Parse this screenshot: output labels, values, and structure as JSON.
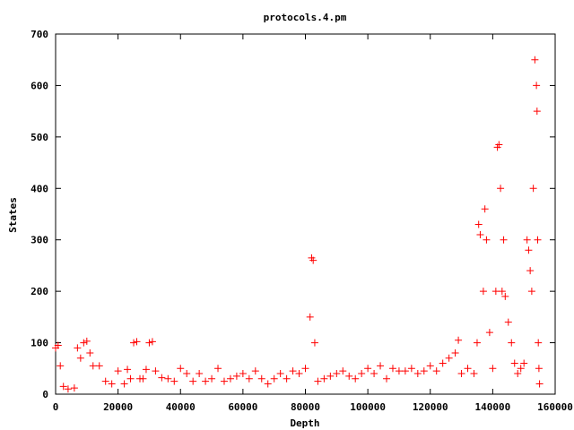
{
  "chart_data": {
    "type": "scatter",
    "title": "protocols.4.pm",
    "xlabel": "Depth",
    "ylabel": "States",
    "xlim": [
      0,
      160000
    ],
    "ylim": [
      0,
      700
    ],
    "xticks": [
      "0",
      "20000",
      "40000",
      "60000",
      "80000",
      "100000",
      "120000",
      "140000",
      "160000"
    ],
    "yticks": [
      "0",
      "100",
      "200",
      "300",
      "400",
      "500",
      "600",
      "700"
    ],
    "grid": false,
    "legend": "none",
    "marker": "plus",
    "color": "#ff0000",
    "series": [
      {
        "x": [
          0,
          800,
          1500,
          2500,
          4000,
          6000,
          7000,
          8000,
          9000,
          10000,
          11000,
          12000,
          14000,
          16000,
          18000,
          20000,
          22000,
          23000,
          24000,
          25000,
          26000,
          27000,
          28000,
          29000,
          30000,
          31000,
          32000,
          34000,
          36000,
          38000,
          40000,
          42000,
          44000,
          46000,
          48000,
          50000,
          52000,
          54000,
          56000,
          58000,
          60000,
          62000,
          64000,
          66000,
          68000,
          70000,
          72000,
          74000,
          76000,
          78000,
          80000,
          81500,
          82000,
          82500,
          83000,
          84000,
          86000,
          88000,
          90000,
          92000,
          94000,
          96000,
          98000,
          100000,
          102000,
          104000,
          106000,
          108000,
          110000,
          112000,
          114000,
          116000,
          118000,
          120000,
          122000,
          124000,
          126000,
          128000,
          129000,
          130000,
          132000,
          134000,
          135000,
          135500,
          136000,
          137000,
          137500,
          138000,
          139000,
          140000,
          141000,
          141500,
          142000,
          142500,
          143000,
          143500,
          144000,
          145000,
          146000,
          147000,
          148000,
          149000,
          150000,
          151000,
          151500,
          152000,
          152500,
          153000,
          153500,
          154000,
          154200,
          154400,
          154600,
          154800,
          155000
        ],
        "y": [
          90,
          95,
          55,
          15,
          10,
          12,
          90,
          70,
          100,
          103,
          80,
          55,
          55,
          25,
          20,
          45,
          20,
          48,
          30,
          100,
          102,
          30,
          30,
          48,
          100,
          102,
          45,
          32,
          30,
          25,
          50,
          40,
          25,
          40,
          25,
          30,
          50,
          25,
          30,
          35,
          40,
          30,
          45,
          30,
          20,
          30,
          40,
          30,
          45,
          40,
          50,
          150,
          265,
          260,
          100,
          25,
          30,
          35,
          40,
          45,
          35,
          30,
          40,
          50,
          40,
          55,
          30,
          50,
          45,
          45,
          50,
          40,
          45,
          55,
          45,
          60,
          70,
          80,
          105,
          40,
          50,
          40,
          100,
          330,
          310,
          200,
          360,
          300,
          120,
          50,
          200,
          480,
          485,
          400,
          200,
          300,
          190,
          140,
          100,
          60,
          40,
          50,
          60,
          300,
          280,
          240,
          200,
          400,
          650,
          600,
          550,
          300,
          100,
          50,
          20
        ]
      }
    ]
  }
}
